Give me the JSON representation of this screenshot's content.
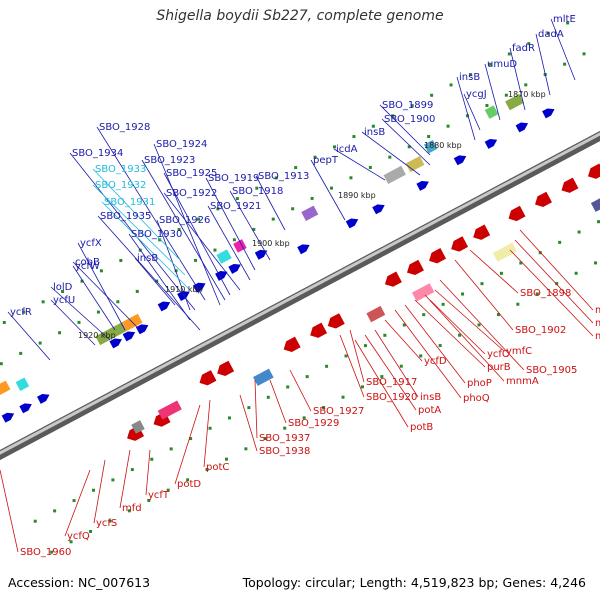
{
  "title": "Shigella boydii Sb227, complete genome",
  "footer": {
    "accession": "Accession: NC_007613",
    "summary": "Topology: circular; Length: 4,519,823 bp; Genes: 4,246"
  },
  "colors": {
    "plus_gene": "#0000cc",
    "minus_gene": "#cc0000",
    "plus_label": "#1a1aaa",
    "minus_label": "#cc1111",
    "pseudo_label": "#22bbdd",
    "tick": "#2a8a2a",
    "backbone": "#808080"
  },
  "kbp_labels": [
    "1870 kbp",
    "1880 kbp",
    "1890 kbp",
    "1900 kbp",
    "1910 kbp",
    "1920 kbp"
  ],
  "plus_labels": [
    "mltE",
    "dadA",
    "fadR",
    "umuD",
    "ycgJ",
    "insB",
    "SBO_1899",
    "SBO_1900",
    "insB",
    "icdA",
    "pepT",
    "SBO_1913",
    "SBO_1918",
    "SBO_1919",
    "SBO_1921",
    "SBO_1922",
    "SBO_1925",
    "SBO_1923",
    "SBO_1924",
    "SBO_1928",
    "SBO_1934",
    "SBO_1926",
    "SBO_1930",
    "insB",
    "cobB",
    "ycfX",
    "ycfW",
    "lolD",
    "ycfU",
    "ycfR",
    "SBO_1935"
  ],
  "pseudo_labels": [
    "SBO_1933",
    "SBO_1932",
    "SBO_1931"
  ],
  "minus_labels": [
    "minC",
    "minD",
    "minE",
    "SBO_1898",
    "SBO_1902",
    "SBO_1905",
    "ymfC",
    "mnmA",
    "ycfC",
    "purB",
    "phoP",
    "phoQ",
    "ycfD",
    "insB",
    "potA",
    "potB",
    "SBO_1917",
    "SBO_1920",
    "SBO_1927",
    "SBO_1929",
    "SBO_1937",
    "SBO_1938",
    "potC",
    "potD",
    "ycfT",
    "mfd",
    "ycfS",
    "ycfQ",
    "SBO_1960"
  ]
}
